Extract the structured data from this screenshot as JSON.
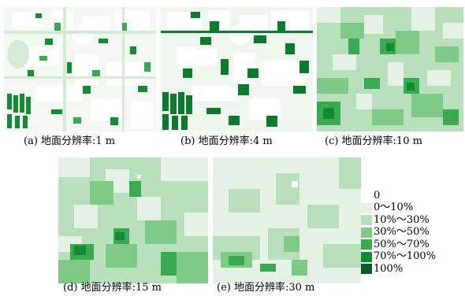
{
  "panels": [
    {
      "caption": "(a) 地面分辨率:1 m"
    },
    {
      "caption": "(b) 地面分辨率:4 m"
    },
    {
      "caption": "(c) 地面分辨率:10 m"
    },
    {
      "caption": "(d) 地面分辨率:15 m"
    },
    {
      "caption": "(e) 地面分辨率:30 m"
    }
  ],
  "legend": {
    "items": [
      {
        "label": "0",
        "color": "#ffffff"
      },
      {
        "label": "0～10%",
        "color": "#e3f2e4"
      },
      {
        "label": "10%～30%",
        "color": "#b9e0bc"
      },
      {
        "label": "30%～50%",
        "color": "#7ec987"
      },
      {
        "label": "50%～70%",
        "color": "#3aa94f"
      },
      {
        "label": "70%～100%",
        "color": "#158a35"
      },
      {
        "label": "100%",
        "color": "#0b5b24"
      }
    ]
  }
}
